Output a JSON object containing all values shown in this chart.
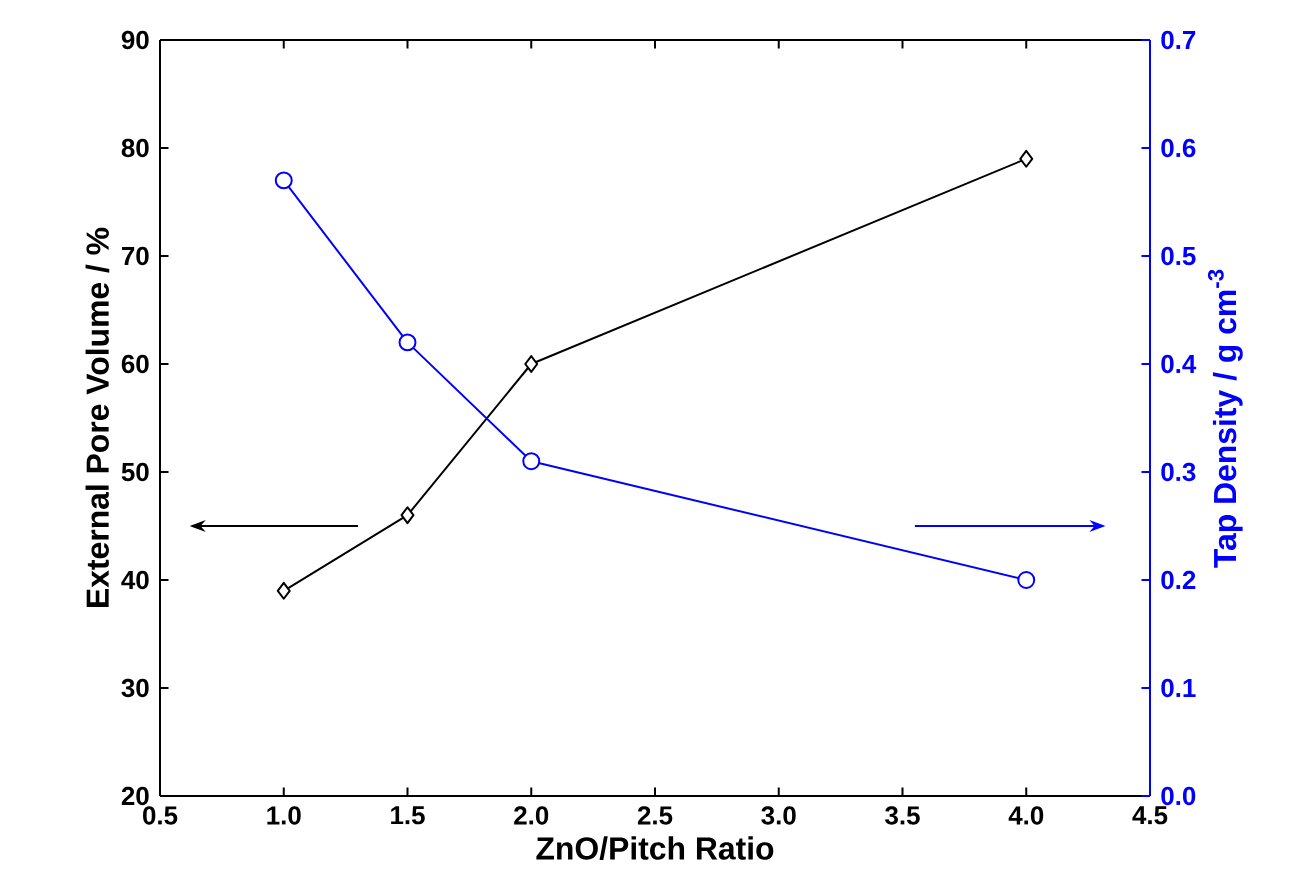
{
  "chart_data": {
    "type": "line",
    "xlabel": "ZnO/Pitch Ratio",
    "ylabel": "External Pore Volume / %",
    "y2label": "Tap Density / g cm$^{-3}$",
    "series": [
      {
        "color": "#000000",
        "marker": "diamond",
        "x": [
          1,
          1.5,
          2,
          4
        ],
        "values": [
          39,
          46,
          60,
          79
        ]
      },
      {
        "color": "#0000ff",
        "marker": "circle",
        "axis": "y2",
        "x": [
          1,
          1.5,
          2,
          4
        ],
        "values": [
          0.57,
          0.42,
          0.31,
          0.2
        ]
      }
    ],
    "xlim": [
      0.5,
      4.5
    ],
    "xticks": [
      0.5,
      {
        "value": 1,
        "label": "1.0"
      },
      1.5,
      {
        "value": 2,
        "label": "2.0"
      },
      2.5,
      {
        "value": 3,
        "label": "3.0"
      },
      3.5,
      {
        "value": 4,
        "label": "4.0"
      },
      4.5
    ],
    "ylim": [
      20,
      90
    ],
    "yticks": [
      20,
      30,
      40,
      50,
      60,
      70,
      80,
      90
    ],
    "y2lim": [
      0,
      0.7
    ],
    "y2ticks": [
      {
        "value": 0,
        "label": "0.0"
      },
      0.1,
      0.2,
      0.3,
      0.4,
      0.5,
      0.6,
      0.7
    ],
    "line_style": "solid"
  }
}
